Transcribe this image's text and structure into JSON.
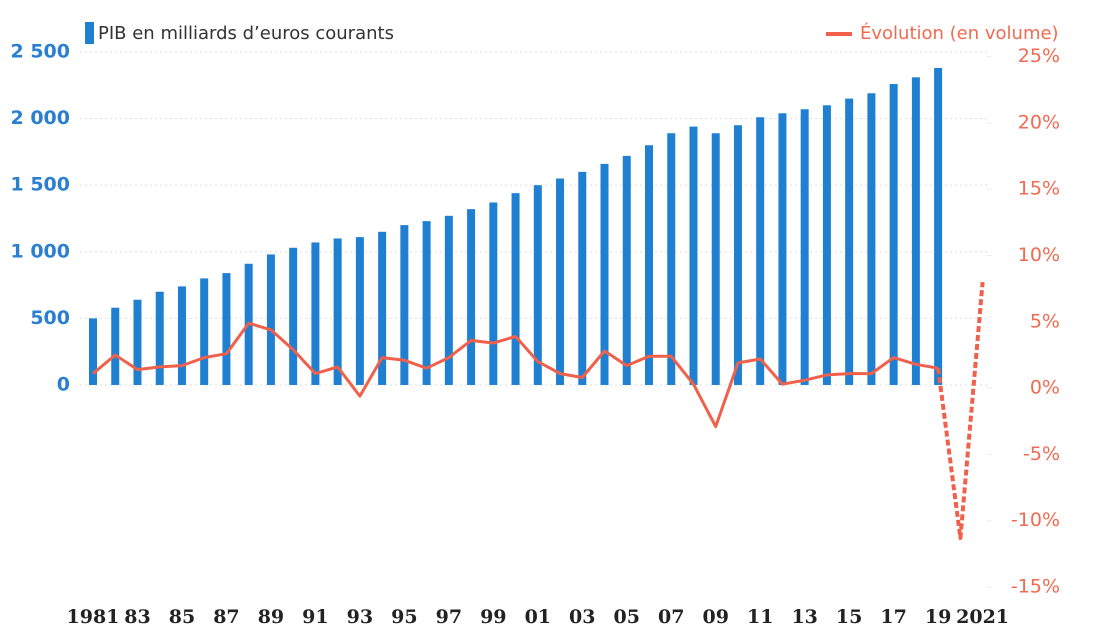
{
  "chart_data": {
    "type": "bar_line",
    "categories": [
      "1981",
      null,
      "83",
      null,
      "85",
      null,
      "87",
      null,
      "89",
      null,
      "91",
      null,
      "93",
      null,
      "95",
      null,
      "97",
      null,
      "99",
      null,
      "01",
      null,
      "03",
      null,
      "05",
      null,
      "07",
      null,
      "09",
      null,
      "11",
      null,
      "13",
      null,
      "15",
      null,
      "17",
      null,
      "19",
      null,
      "2021"
    ],
    "series": [
      {
        "name": "PIB en milliards d’euros courants",
        "color": "#1f7fd0",
        "type": "bar",
        "values": [
          500,
          580,
          640,
          700,
          740,
          800,
          840,
          910,
          980,
          1030,
          1070,
          1100,
          1110,
          1150,
          1200,
          1230,
          1270,
          1320,
          1370,
          1440,
          1500,
          1550,
          1600,
          1660,
          1720,
          1800,
          1890,
          1940,
          1890,
          1950,
          2010,
          2040,
          2070,
          2100,
          2150,
          2190,
          2260,
          2310,
          2380,
          null,
          null
        ]
      },
      {
        "name": "Évolution (en volume)",
        "color": "#f0604a",
        "type": "line",
        "axis": "y2",
        "dashed_from": 38,
        "values": [
          1.1,
          2.5,
          1.4,
          1.6,
          1.7,
          2.3,
          2.6,
          4.9,
          4.4,
          2.9,
          1.1,
          1.6,
          -0.6,
          2.3,
          2.1,
          1.5,
          2.3,
          3.6,
          3.4,
          3.9,
          2.0,
          1.1,
          0.8,
          2.8,
          1.7,
          2.4,
          2.4,
          0.3,
          -2.9,
          1.9,
          2.2,
          0.3,
          0.6,
          1.0,
          1.1,
          1.1,
          2.3,
          1.8,
          1.5,
          -11.3,
          8.0
        ]
      }
    ],
    "ylim": [
      -1577,
      2515
    ],
    "yticks": [
      0,
      500,
      {
        "value": 1000,
        "label": "1 000"
      },
      {
        "value": 1500,
        "label": "1 500"
      },
      {
        "value": 2000,
        "label": "2 000"
      },
      {
        "value": 2500,
        "label": "2 500"
      }
    ],
    "y2lim": [
      -15.6,
      25.5
    ],
    "y2ticks": [
      {
        "value": 25,
        "label": "25%"
      },
      {
        "value": 20,
        "label": "20%"
      },
      {
        "value": 15,
        "label": "15%"
      },
      {
        "value": 10,
        "label": "10%"
      },
      {
        "value": 5,
        "label": "5%"
      },
      {
        "value": 0,
        "label": "0%"
      },
      {
        "value": -5,
        "label": "-5%"
      },
      {
        "value": -10,
        "label": "-10%"
      },
      {
        "value": -15,
        "label": "-15%"
      }
    ],
    "grid": true
  }
}
